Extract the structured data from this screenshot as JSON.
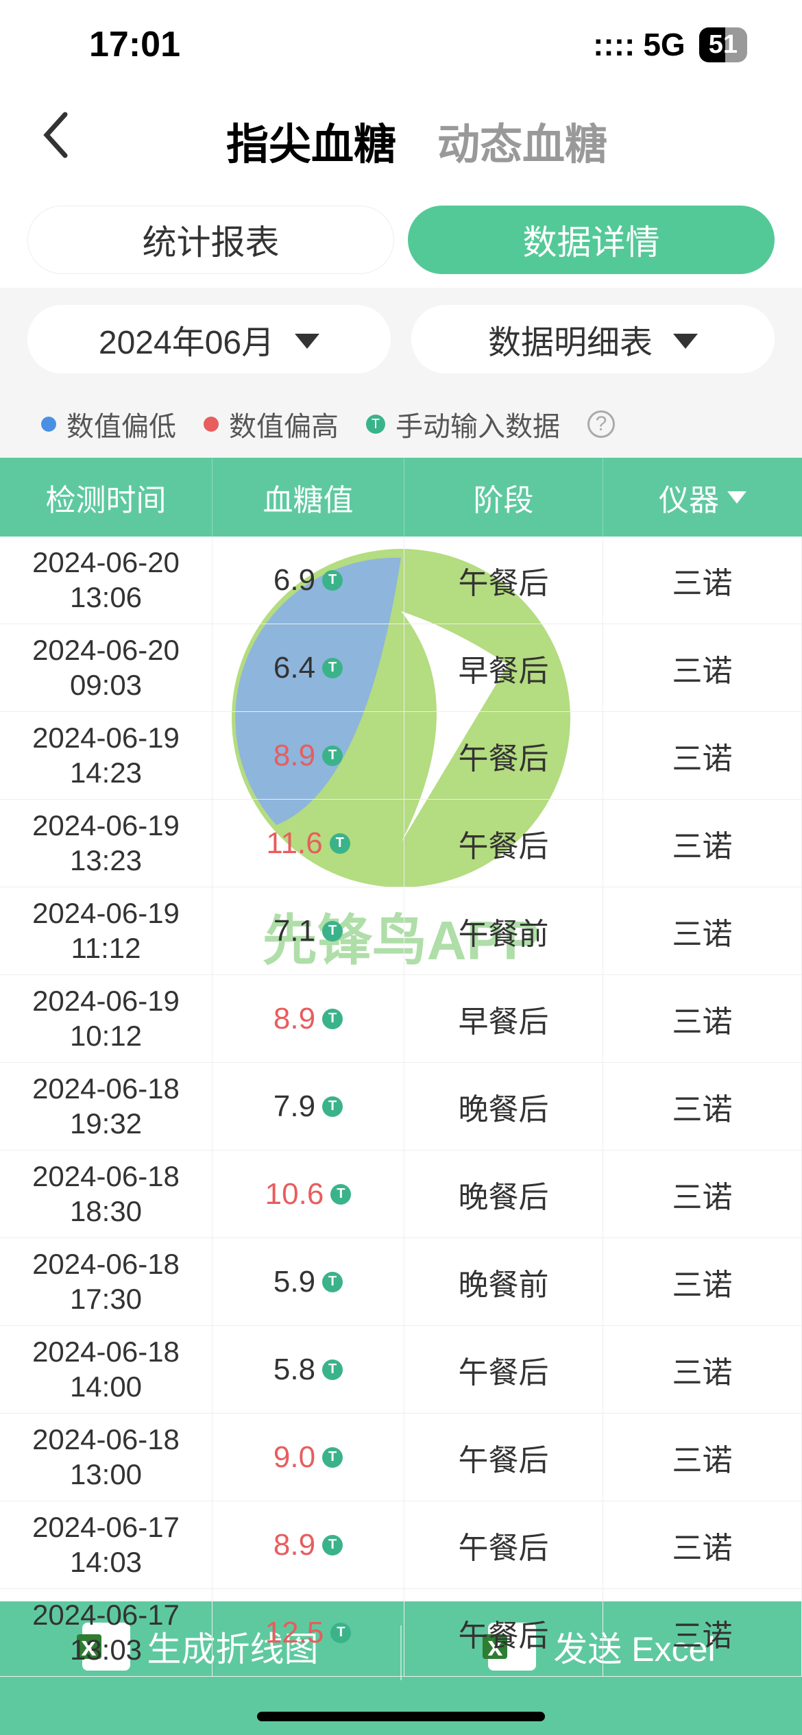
{
  "status": {
    "time": "17:01",
    "network": "5G",
    "battery": "51"
  },
  "nav": {
    "tab_fingertip": "指尖血糖",
    "tab_continuous": "动态血糖"
  },
  "segment": {
    "report": "统计报表",
    "detail": "数据详情"
  },
  "filters": {
    "month": "2024年06月",
    "table_type": "数据明细表"
  },
  "legend": {
    "low": "数值偏低",
    "high": "数值偏高",
    "manual": "手动输入数据"
  },
  "table": {
    "headers": {
      "time": "检测时间",
      "value": "血糖值",
      "phase": "阶段",
      "device": "仪器"
    },
    "rows": [
      {
        "date": "2024-06-20",
        "clock": "13:06",
        "value": "6.9",
        "high": false,
        "phase": "午餐后",
        "device": "三诺"
      },
      {
        "date": "2024-06-20",
        "clock": "09:03",
        "value": "6.4",
        "high": false,
        "phase": "早餐后",
        "device": "三诺"
      },
      {
        "date": "2024-06-19",
        "clock": "14:23",
        "value": "8.9",
        "high": true,
        "phase": "午餐后",
        "device": "三诺"
      },
      {
        "date": "2024-06-19",
        "clock": "13:23",
        "value": "11.6",
        "high": true,
        "phase": "午餐后",
        "device": "三诺"
      },
      {
        "date": "2024-06-19",
        "clock": "11:12",
        "value": "7.1",
        "high": false,
        "phase": "午餐前",
        "device": "三诺"
      },
      {
        "date": "2024-06-19",
        "clock": "10:12",
        "value": "8.9",
        "high": true,
        "phase": "早餐后",
        "device": "三诺"
      },
      {
        "date": "2024-06-18",
        "clock": "19:32",
        "value": "7.9",
        "high": false,
        "phase": "晚餐后",
        "device": "三诺"
      },
      {
        "date": "2024-06-18",
        "clock": "18:30",
        "value": "10.6",
        "high": true,
        "phase": "晚餐后",
        "device": "三诺"
      },
      {
        "date": "2024-06-18",
        "clock": "17:30",
        "value": "5.9",
        "high": false,
        "phase": "晚餐前",
        "device": "三诺"
      },
      {
        "date": "2024-06-18",
        "clock": "14:00",
        "value": "5.8",
        "high": false,
        "phase": "午餐后",
        "device": "三诺"
      },
      {
        "date": "2024-06-18",
        "clock": "13:00",
        "value": "9.0",
        "high": true,
        "phase": "午餐后",
        "device": "三诺"
      },
      {
        "date": "2024-06-17",
        "clock": "14:03",
        "value": "8.9",
        "high": true,
        "phase": "午餐后",
        "device": "三诺"
      },
      {
        "date": "2024-06-17",
        "clock": "13:03",
        "value": "12.5",
        "high": true,
        "phase": "午餐后",
        "device": "三诺"
      }
    ]
  },
  "bottom": {
    "chart_btn": "生成折线图",
    "excel_btn": "发送 Excel"
  },
  "watermark_text": "先锋鸟APP",
  "colors": {
    "primary": "#5ec99f",
    "high_value": "#e85d5d",
    "low_dot": "#4a90e2",
    "manual_badge": "#3bb38a"
  }
}
